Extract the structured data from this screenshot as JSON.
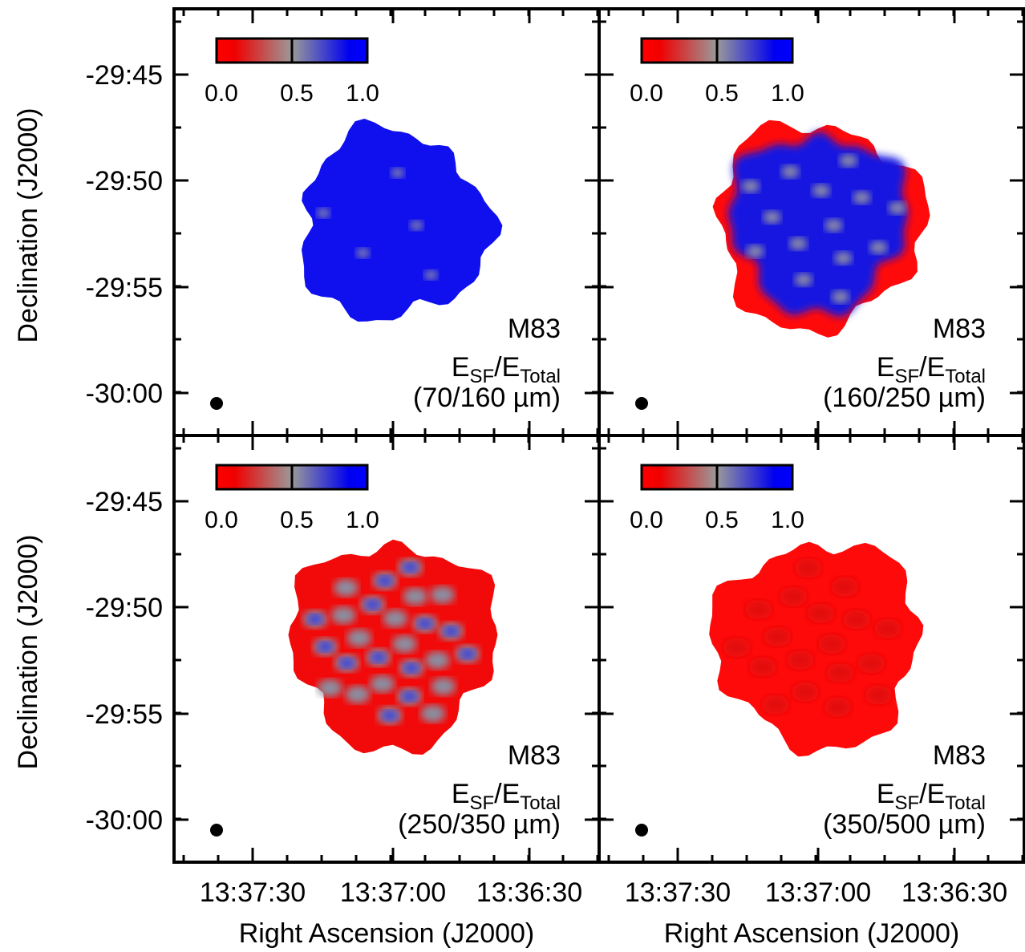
{
  "y_axis_label": "Declination (J2000)",
  "x_axis_label": "Right Ascension (J2000)",
  "y_tick_labels": [
    "-29:45",
    "-29:50",
    "-29:55",
    "-30:00"
  ],
  "x_tick_labels": [
    "13:37:30",
    "13:37:00",
    "13:36:30"
  ],
  "colorbar_labels": [
    "0.0",
    "0.5",
    "1.0"
  ],
  "panels": [
    {
      "object": "M83",
      "ratio": [
        "E",
        "SF",
        "/E",
        "Total"
      ],
      "bands": "(70/160 µm)"
    },
    {
      "object": "M83",
      "ratio": [
        "E",
        "SF",
        "/E",
        "Total"
      ],
      "bands": "(160/250 µm)"
    },
    {
      "object": "M83",
      "ratio": [
        "E",
        "SF",
        "/E",
        "Total"
      ],
      "bands": "(250/350 µm)"
    },
    {
      "object": "M83",
      "ratio": [
        "E",
        "SF",
        "/E",
        "Total"
      ],
      "bands": "(350/500 µm)"
    }
  ]
}
